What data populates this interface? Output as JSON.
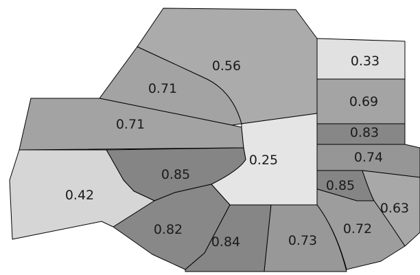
{
  "map": {
    "regions": [
      {
        "id": "north-center",
        "value": "0.56",
        "fill": "#ababab"
      },
      {
        "id": "top-right",
        "value": "0.33",
        "fill": "#e1e1e1"
      },
      {
        "id": "north-west-upper",
        "value": "0.71",
        "fill": "#a3a3a3"
      },
      {
        "id": "west-upper",
        "value": "0.71",
        "fill": "#a3a3a3"
      },
      {
        "id": "east-069",
        "value": "0.69",
        "fill": "#a4a4a4"
      },
      {
        "id": "east-083",
        "value": "0.83",
        "fill": "#878787"
      },
      {
        "id": "center",
        "value": "0.25",
        "fill": "#e5e5e5"
      },
      {
        "id": "east-074",
        "value": "0.74",
        "fill": "#969696"
      },
      {
        "id": "center-west",
        "value": "0.85",
        "fill": "#858585"
      },
      {
        "id": "west",
        "value": "0.42",
        "fill": "#d6d6d6"
      },
      {
        "id": "east-085",
        "value": "0.85",
        "fill": "#858585"
      },
      {
        "id": "east-063",
        "value": "0.63",
        "fill": "#a8a8a8"
      },
      {
        "id": "south-082",
        "value": "0.82",
        "fill": "#888888"
      },
      {
        "id": "south-072",
        "value": "0.72",
        "fill": "#9d9d9d"
      },
      {
        "id": "south-084",
        "value": "0.84",
        "fill": "#868686"
      },
      {
        "id": "south-073",
        "value": "0.73",
        "fill": "#989898"
      }
    ]
  }
}
